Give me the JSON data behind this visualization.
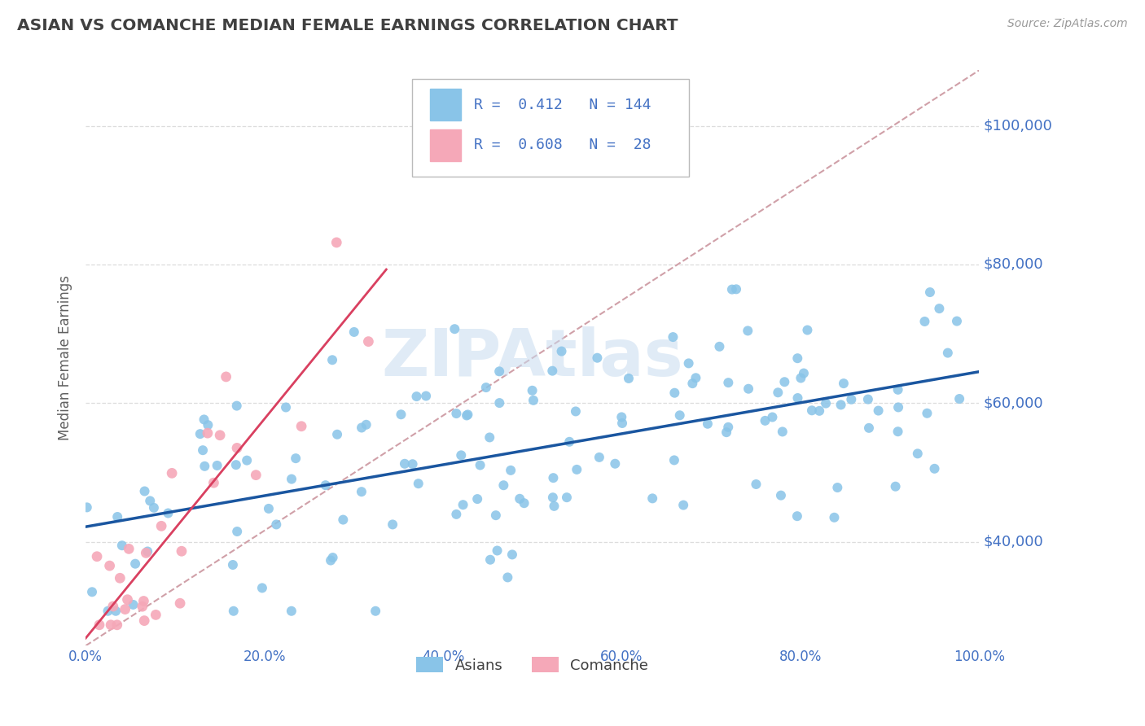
{
  "title": "ASIAN VS COMANCHE MEDIAN FEMALE EARNINGS CORRELATION CHART",
  "source_text": "Source: ZipAtlas.com",
  "ylabel": "Median Female Earnings",
  "watermark": "ZIPAtlas",
  "x_min": 0.0,
  "x_max": 1.0,
  "y_min": 25000,
  "y_max": 108000,
  "yticks": [
    40000,
    60000,
    80000,
    100000
  ],
  "ytick_labels": [
    "$40,000",
    "$60,000",
    "$80,000",
    "$100,000"
  ],
  "xticks": [
    0.0,
    0.2,
    0.4,
    0.6,
    0.8,
    1.0
  ],
  "xtick_labels": [
    "0.0%",
    "20.0%",
    "40.0%",
    "60.0%",
    "80.0%",
    "100.0%"
  ],
  "asian_color": "#89C4E8",
  "comanche_color": "#F5A8B8",
  "asian_R": 0.412,
  "asian_N": 144,
  "comanche_R": 0.608,
  "comanche_N": 28,
  "trend_blue": "#1A56A0",
  "trend_pink": "#D94060",
  "diag_color": "#D0A0A8",
  "background_color": "#FFFFFF",
  "title_color": "#404040",
  "axis_label_color": "#606060",
  "tick_color": "#4472C4",
  "grid_color": "#DDDDDD",
  "legend_label_asian": "Asians",
  "legend_label_comanche": "Comanche"
}
